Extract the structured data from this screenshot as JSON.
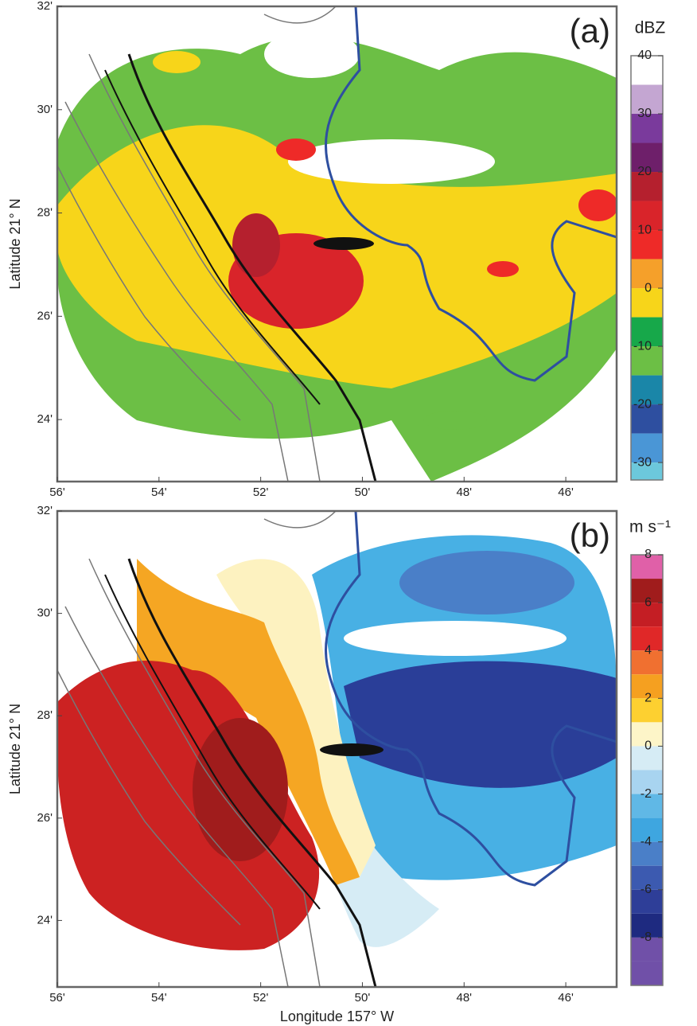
{
  "chart_data": [
    {
      "type": "map",
      "panel_label": "(a)",
      "xlim": [
        56,
        45
      ],
      "ylim": [
        22.8,
        32
      ],
      "xticks": [
        {
          "value": 56,
          "label": "56'"
        },
        {
          "value": 54,
          "label": "54'"
        },
        {
          "value": 52,
          "label": "52'"
        },
        {
          "value": 50,
          "label": "50'"
        },
        {
          "value": 48,
          "label": "48'"
        },
        {
          "value": 46,
          "label": "46'"
        }
      ],
      "yticks": [
        {
          "value": 32,
          "label": "32'"
        },
        {
          "value": 30,
          "label": "30'"
        },
        {
          "value": 28,
          "label": "28'"
        },
        {
          "value": 26,
          "label": "26'"
        },
        {
          "value": 24,
          "label": "24'"
        }
      ],
      "ylabel": "Latitude 21° N",
      "colorbar": {
        "label": "dBZ",
        "lim": [
          -33,
          40
        ],
        "ticks": [
          40,
          30,
          20,
          10,
          0,
          -10,
          -20,
          -30
        ],
        "bounds": [
          40,
          35,
          30,
          25,
          20,
          15,
          10,
          5,
          0,
          -5,
          -10,
          -15,
          -20,
          -25,
          -30,
          -35
        ],
        "colors": [
          "#ffffff",
          "#c4a6d2",
          "#7a3a9c",
          "#6e1f6a",
          "#b5202e",
          "#d9242a",
          "#ee2a28",
          "#f5a02a",
          "#f7d51a",
          "#17a84a",
          "#6cbf45",
          "#1a86a8",
          "#2e4fa0",
          "#4a96d6",
          "#6cc8dc"
        ]
      }
    },
    {
      "type": "map",
      "panel_label": "(b)",
      "xlim": [
        56,
        45
      ],
      "ylim": [
        22.7,
        32
      ],
      "xticks": [
        {
          "value": 56,
          "label": "56'"
        },
        {
          "value": 54,
          "label": "54'"
        },
        {
          "value": 52,
          "label": "52'"
        },
        {
          "value": 50,
          "label": "50'"
        },
        {
          "value": 48,
          "label": "48'"
        },
        {
          "value": 46,
          "label": "46'"
        }
      ],
      "yticks": [
        {
          "value": 32,
          "label": "32'"
        },
        {
          "value": 30,
          "label": "30'"
        },
        {
          "value": 28,
          "label": "28'"
        },
        {
          "value": 26,
          "label": "26'"
        },
        {
          "value": 24,
          "label": "24'"
        }
      ],
      "ylabel": "Latitude 21° N",
      "xlabel": "Longitude 157° W",
      "colorbar": {
        "label": "m s⁻¹",
        "lim": [
          -10,
          8
        ],
        "ticks": [
          8,
          6,
          4,
          2,
          0,
          -2,
          -4,
          -6,
          -8
        ],
        "bounds": [
          8,
          7,
          6,
          5,
          4,
          3,
          2,
          1,
          0,
          -1,
          -2,
          -3,
          -4,
          -5,
          -6,
          -7,
          -8,
          -9,
          -10
        ],
        "colors": [
          "#e060a8",
          "#a01c1c",
          "#c41e24",
          "#e02828",
          "#f07030",
          "#f5a020",
          "#fdd030",
          "#fdf5c8",
          "#d6ecf5",
          "#a8d4f0",
          "#60b8e6",
          "#3ea6e0",
          "#4a7fc8",
          "#3c5ab0",
          "#2e3e98",
          "#1e2a80",
          "#7050a8",
          "#7050a8"
        ]
      }
    }
  ]
}
